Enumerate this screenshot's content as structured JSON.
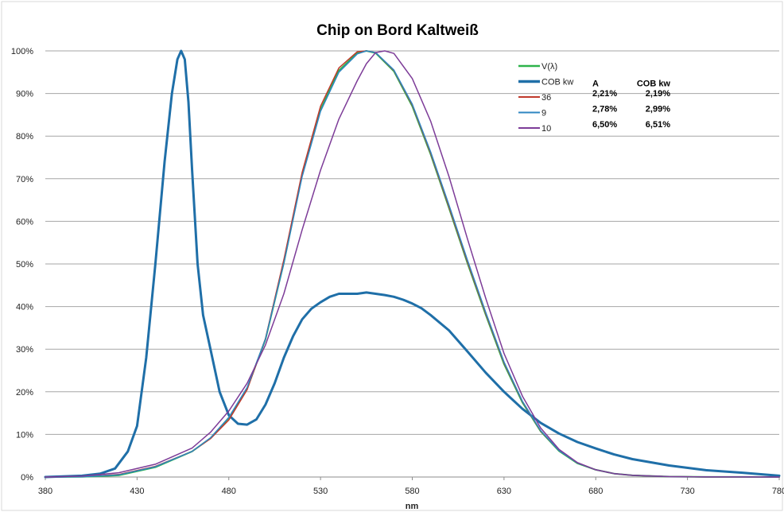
{
  "chart_data": {
    "type": "line",
    "title": "Chip on Bord Kaltweiß",
    "xlabel": "nm",
    "ylabel": "",
    "xlim": [
      380,
      780
    ],
    "ylim": [
      0,
      100
    ],
    "x_ticks": [
      380,
      430,
      480,
      530,
      580,
      630,
      680,
      730,
      780
    ],
    "x_tick_labels": [
      "380",
      "430",
      "480",
      "530",
      "580",
      "630",
      "680",
      "730",
      "780"
    ],
    "y_ticks": [
      0,
      10,
      20,
      30,
      40,
      50,
      60,
      70,
      80,
      90,
      100
    ],
    "y_tick_labels": [
      "0%",
      "10%",
      "20%",
      "30%",
      "40%",
      "50%",
      "60%",
      "70%",
      "80%",
      "90%",
      "100%"
    ],
    "grid": "horizontal",
    "legend_position": "top-right",
    "series": [
      {
        "name": "V(λ)",
        "color": "#2db34a",
        "width": 2,
        "x": [
          380,
          400,
          420,
          440,
          460,
          470,
          480,
          490,
          500,
          510,
          520,
          530,
          540,
          550,
          555,
          560,
          570,
          580,
          590,
          600,
          610,
          620,
          630,
          640,
          650,
          660,
          670,
          680,
          690,
          700,
          720,
          740,
          760,
          780
        ],
        "y": [
          0,
          0.04,
          0.4,
          2.3,
          6,
          9.1,
          13.9,
          20.8,
          32.3,
          50.3,
          71,
          86.2,
          95.4,
          99.5,
          100,
          99.5,
          95.2,
          87,
          75.7,
          63.1,
          50.3,
          38.1,
          26.5,
          17.5,
          10.7,
          6.1,
          3.2,
          1.7,
          0.8,
          0.4,
          0.1,
          0.02,
          0.01,
          0
        ]
      },
      {
        "name": "COB kw",
        "color": "#1f6fa8",
        "width": 3,
        "x": [
          380,
          400,
          410,
          418,
          425,
          430,
          435,
          440,
          445,
          449,
          452,
          454,
          456,
          458,
          460,
          463,
          466,
          470,
          475,
          480,
          485,
          490,
          495,
          500,
          505,
          510,
          515,
          520,
          525,
          530,
          535,
          540,
          545,
          550,
          555,
          560,
          565,
          570,
          575,
          580,
          585,
          590,
          600,
          610,
          620,
          630,
          640,
          650,
          660,
          670,
          680,
          690,
          700,
          720,
          740,
          760,
          780
        ],
        "y": [
          0,
          0.3,
          0.8,
          2,
          6,
          12,
          28,
          50,
          74,
          90,
          98,
          100,
          98,
          88,
          72,
          50,
          38,
          30,
          20,
          14.5,
          12.5,
          12.3,
          13.5,
          17,
          22,
          28,
          33,
          37,
          39.5,
          41,
          42.3,
          43,
          43,
          43,
          43.3,
          43,
          42.7,
          42.3,
          41.6,
          40.7,
          39.6,
          38,
          34.4,
          29.5,
          24.5,
          20,
          16,
          12.7,
          10.2,
          8.2,
          6.7,
          5.3,
          4.2,
          2.7,
          1.6,
          1,
          0.3
        ]
      },
      {
        "name": "36",
        "color": "#c0392b",
        "width": 1.5,
        "x": [
          380,
          400,
          420,
          440,
          460,
          470,
          480,
          490,
          500,
          510,
          520,
          530,
          540,
          550,
          555,
          560,
          570,
          580,
          590,
          600,
          610,
          620,
          630,
          640,
          650,
          660,
          670,
          680,
          690,
          700,
          720,
          740,
          760,
          780
        ],
        "y": [
          0,
          0.1,
          0.6,
          2.5,
          6,
          9,
          13.4,
          20.5,
          32.5,
          51,
          71.5,
          87,
          96,
          99.8,
          100,
          99.6,
          95.4,
          87.3,
          76,
          63.4,
          50.6,
          38.4,
          26.8,
          17.7,
          10.8,
          6.2,
          3.3,
          1.7,
          0.8,
          0.4,
          0.1,
          0.02,
          0.01,
          0
        ]
      },
      {
        "name": "9",
        "color": "#2e86c1",
        "width": 1.5,
        "x": [
          380,
          400,
          420,
          440,
          460,
          470,
          480,
          490,
          500,
          510,
          520,
          530,
          540,
          550,
          555,
          560,
          570,
          580,
          590,
          600,
          610,
          620,
          630,
          640,
          650,
          660,
          670,
          680,
          690,
          700,
          720,
          740,
          760,
          780
        ],
        "y": [
          0,
          0.05,
          0.5,
          2.4,
          6,
          9.2,
          14,
          21,
          32.4,
          50.2,
          70.5,
          85.8,
          95,
          99.3,
          100,
          99.6,
          95.5,
          87.5,
          76.3,
          63.8,
          51,
          38.7,
          27,
          17.8,
          10.9,
          6.2,
          3.3,
          1.7,
          0.8,
          0.4,
          0.1,
          0.02,
          0.01,
          0
        ]
      },
      {
        "name": "10",
        "color": "#7d3c98",
        "width": 1.5,
        "x": [
          380,
          400,
          420,
          440,
          460,
          470,
          480,
          490,
          500,
          510,
          520,
          530,
          540,
          550,
          555,
          560,
          565,
          570,
          580,
          590,
          600,
          610,
          620,
          630,
          640,
          650,
          660,
          670,
          680,
          690,
          700,
          720,
          740,
          760,
          780
        ],
        "y": [
          0,
          0.2,
          1,
          3,
          6.8,
          10.5,
          15.5,
          22,
          31,
          43,
          58,
          72,
          84,
          93,
          97,
          99.6,
          100,
          99.4,
          93.5,
          83.5,
          70.5,
          56,
          42,
          29,
          19,
          11.5,
          6.5,
          3.4,
          1.7,
          0.8,
          0.4,
          0.1,
          0.02,
          0.01,
          0
        ]
      }
    ],
    "table": {
      "headers": [
        "A",
        "COB kw"
      ],
      "rows": [
        {
          "series": "36",
          "values": [
            "2,21%",
            "2,19%"
          ]
        },
        {
          "series": "9",
          "values": [
            "2,78%",
            "2,99%"
          ]
        },
        {
          "series": "10",
          "values": [
            "6,50%",
            "6,51%"
          ]
        }
      ]
    }
  }
}
